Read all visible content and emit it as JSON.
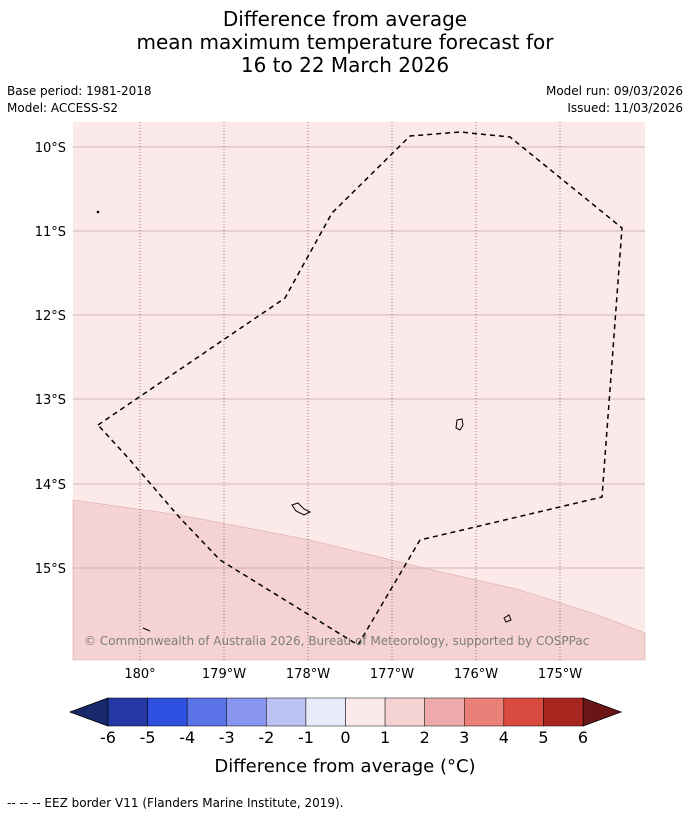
{
  "title": {
    "line1": "Difference from average",
    "line2": "mean maximum temperature forecast for",
    "line3": "16 to 22 March 2026"
  },
  "meta": {
    "base_period": "Base period: 1981-2018",
    "model": "Model: ACCESS-S2",
    "model_run": "Model run: 09/03/2026",
    "issued": "Issued: 11/03/2026"
  },
  "map": {
    "lat_labels": [
      "10°S",
      "11°S",
      "12°S",
      "13°S",
      "14°S",
      "15°S"
    ],
    "lon_labels": [
      "180°",
      "179°W",
      "178°W",
      "177°W",
      "176°W",
      "175°W"
    ],
    "copyright": "© Commonwealth of Australia 2026, Bureau of Meteorology, supported by COSPPac",
    "colors": {
      "background_anomaly": "#fbeae9",
      "lower_anomaly": "#f5d3d2",
      "grid": "#c8a6a6",
      "eez_border": "#000000"
    }
  },
  "colorbar": {
    "ticks": [
      "-6",
      "-5",
      "-4",
      "-3",
      "-2",
      "-1",
      "0",
      "1",
      "2",
      "3",
      "4",
      "5",
      "6"
    ],
    "label": "Difference from average (°C)",
    "under_color": "#17286b",
    "over_color": "#6b1616",
    "colors": [
      "#2438a5",
      "#2f4fe0",
      "#5a73e6",
      "#8795ec",
      "#bcc3f4",
      "#e8eafb",
      "#fbeae9",
      "#f5d3d2",
      "#eeaaaa",
      "#ea8178",
      "#d94a3f",
      "#a82620"
    ]
  },
  "footnote": "--  --  -- EEZ border V11 (Flanders Marine Institute, 2019)."
}
